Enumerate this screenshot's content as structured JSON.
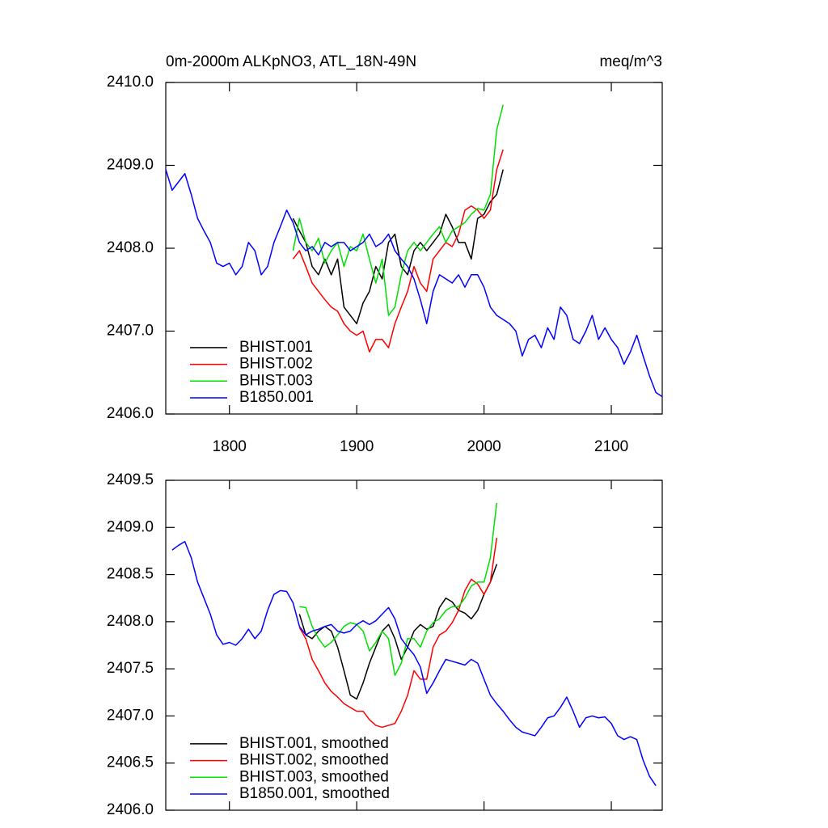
{
  "chart_data": [
    {
      "type": "line",
      "title": "0m-2000m ALKpNO3, ATL_18N-49N",
      "right_title": "meq/m^3",
      "xlim": [
        1750,
        2140
      ],
      "xticks": [
        1800,
        1900,
        2000,
        2100
      ],
      "xtick_labels": true,
      "ylim": [
        2406,
        2410
      ],
      "yticks": [
        {
          "value": 2406,
          "label": "2406.0"
        },
        {
          "value": 2407,
          "label": "2407.0"
        },
        {
          "value": 2408,
          "label": "2408.0"
        },
        {
          "value": 2409,
          "label": "2409.0"
        },
        {
          "value": 2410,
          "label": "2410.0"
        }
      ],
      "legend": "lower left",
      "series": [
        {
          "name": "BHIST.001",
          "color": "#000000",
          "x": [
            1850,
            1855,
            1860,
            1865,
            1870,
            1875,
            1880,
            1885,
            1890,
            1895,
            1900,
            1905,
            1910,
            1915,
            1920,
            1925,
            1930,
            1935,
            1940,
            1945,
            1950,
            1955,
            1960,
            1965,
            1970,
            1975,
            1980,
            1985,
            1990,
            1995,
            2000,
            2005,
            2010,
            2015
          ],
          "values": [
            2408.36,
            2408.21,
            2408.07,
            2407.78,
            2407.68,
            2407.87,
            2407.68,
            2407.87,
            2407.29,
            2407.19,
            2407.09,
            2407.34,
            2407.48,
            2407.78,
            2407.63,
            2408.07,
            2408.17,
            2407.78,
            2407.68,
            2407.97,
            2408.07,
            2407.97,
            2408.07,
            2408.17,
            2408.41,
            2408.26,
            2408.07,
            2408.07,
            2407.87,
            2408.36,
            2408.41,
            2408.56,
            2408.65,
            2408.95
          ]
        },
        {
          "name": "BHIST.002",
          "color": "#ff0000",
          "x": [
            1850,
            1855,
            1860,
            1865,
            1870,
            1875,
            1880,
            1885,
            1890,
            1895,
            1900,
            1905,
            1910,
            1915,
            1920,
            1925,
            1930,
            1935,
            1940,
            1945,
            1950,
            1955,
            1960,
            1965,
            1970,
            1975,
            1980,
            1985,
            1990,
            1995,
            2000,
            2005,
            2010,
            2015
          ],
          "values": [
            2407.87,
            2407.97,
            2407.78,
            2407.58,
            2407.48,
            2407.38,
            2407.29,
            2407.24,
            2407.09,
            2407.0,
            2406.95,
            2407.0,
            2406.75,
            2406.9,
            2406.9,
            2406.8,
            2407.09,
            2407.29,
            2407.48,
            2407.78,
            2407.58,
            2407.48,
            2407.87,
            2407.97,
            2408.07,
            2408.02,
            2408.17,
            2408.46,
            2408.51,
            2408.46,
            2408.36,
            2408.46,
            2408.95,
            2409.19
          ]
        },
        {
          "name": "BHIST.003",
          "color": "#00e000",
          "x": [
            1850,
            1855,
            1860,
            1865,
            1870,
            1875,
            1880,
            1885,
            1890,
            1895,
            1900,
            1905,
            1910,
            1915,
            1920,
            1925,
            1930,
            1935,
            1940,
            1945,
            1950,
            1955,
            1960,
            1965,
            1970,
            1975,
            1980,
            1985,
            1990,
            1995,
            2000,
            2005,
            2010,
            2015
          ],
          "values": [
            2407.97,
            2408.36,
            2408.07,
            2407.97,
            2408.12,
            2407.82,
            2407.97,
            2408.07,
            2407.78,
            2408.02,
            2407.97,
            2408.17,
            2407.87,
            2407.58,
            2407.87,
            2407.19,
            2407.29,
            2407.68,
            2407.97,
            2408.07,
            2407.97,
            2408.07,
            2408.17,
            2408.26,
            2408.07,
            2408.21,
            2408.26,
            2408.31,
            2408.41,
            2408.48,
            2408.46,
            2408.65,
            2409.43,
            2409.73
          ]
        },
        {
          "name": "B1850.001",
          "color": "#0000ff",
          "x": [
            1750,
            1755,
            1760,
            1765,
            1770,
            1775,
            1780,
            1785,
            1790,
            1795,
            1800,
            1805,
            1810,
            1815,
            1820,
            1825,
            1830,
            1835,
            1840,
            1845,
            1850,
            1855,
            1860,
            1865,
            1870,
            1875,
            1880,
            1885,
            1890,
            1895,
            1900,
            1905,
            1910,
            1915,
            1920,
            1925,
            1930,
            1935,
            1940,
            1945,
            1950,
            1955,
            1960,
            1965,
            1970,
            1975,
            1980,
            1985,
            1990,
            1995,
            2000,
            2005,
            2010,
            2015,
            2020,
            2025,
            2030,
            2035,
            2040,
            2045,
            2050,
            2055,
            2060,
            2065,
            2070,
            2075,
            2080,
            2085,
            2090,
            2095,
            2100,
            2105,
            2110,
            2115,
            2120,
            2125,
            2130,
            2135,
            2140
          ],
          "values": [
            2408.95,
            2408.7,
            2408.8,
            2408.9,
            2408.65,
            2408.36,
            2408.21,
            2408.07,
            2407.82,
            2407.78,
            2407.82,
            2407.68,
            2407.78,
            2408.07,
            2407.97,
            2407.68,
            2407.78,
            2408.07,
            2408.26,
            2408.46,
            2408.31,
            2408.07,
            2407.97,
            2408.02,
            2407.92,
            2408.07,
            2408.02,
            2408.07,
            2408.07,
            2407.97,
            2408.02,
            2408.07,
            2408.17,
            2408.02,
            2408.07,
            2408.17,
            2407.97,
            2407.87,
            2407.78,
            2407.63,
            2407.38,
            2407.09,
            2407.48,
            2407.68,
            2407.63,
            2407.58,
            2407.68,
            2407.53,
            2407.68,
            2407.68,
            2407.53,
            2407.29,
            2407.19,
            2407.14,
            2407.09,
            2407.0,
            2406.7,
            2406.9,
            2406.95,
            2406.8,
            2407.04,
            2406.9,
            2407.29,
            2407.19,
            2406.9,
            2406.85,
            2407.0,
            2407.19,
            2406.9,
            2407.04,
            2406.9,
            2406.8,
            2406.6,
            2406.75,
            2406.95,
            2406.7,
            2406.46,
            2406.26,
            2406.21
          ]
        }
      ]
    },
    {
      "type": "line",
      "xlim": [
        1750,
        2140
      ],
      "xticks": [
        1800,
        1900,
        2000,
        2100
      ],
      "xtick_labels": false,
      "ylim": [
        2406,
        2409.5
      ],
      "yticks": [
        {
          "value": 2406,
          "label": "2406.0"
        },
        2406.5,
        {
          "value": 2407,
          "label": "2407.0"
        },
        2407.5,
        {
          "value": 2408,
          "label": "2408.0"
        },
        2408.5,
        {
          "value": 2409,
          "label": "2409.0"
        },
        2409.5
      ],
      "legend": "lower left",
      "series": [
        {
          "name": "BHIST.001, smoothed",
          "color": "#000000",
          "x": [
            1855,
            1860,
            1865,
            1870,
            1875,
            1880,
            1885,
            1890,
            1895,
            1900,
            1905,
            1910,
            1915,
            1920,
            1925,
            1930,
            1935,
            1940,
            1945,
            1950,
            1955,
            1960,
            1965,
            1970,
            1975,
            1980,
            1985,
            1990,
            1995,
            2000,
            2005,
            2010
          ],
          "values": [
            2408.08,
            2407.86,
            2407.82,
            2407.9,
            2407.95,
            2407.9,
            2407.73,
            2407.48,
            2407.22,
            2407.18,
            2407.35,
            2407.56,
            2407.73,
            2407.9,
            2407.97,
            2407.82,
            2407.6,
            2407.73,
            2407.9,
            2407.97,
            2407.92,
            2407.95,
            2408.15,
            2408.25,
            2408.21,
            2408.12,
            2408.09,
            2408.03,
            2408.12,
            2408.29,
            2408.42,
            2408.61
          ]
        },
        {
          "name": "BHIST.002, smoothed",
          "color": "#ff0000",
          "x": [
            1855,
            1860,
            1865,
            1870,
            1875,
            1880,
            1885,
            1890,
            1895,
            1900,
            1905,
            1910,
            1915,
            1920,
            1925,
            1930,
            1935,
            1940,
            1945,
            1950,
            1955,
            1960,
            1965,
            1970,
            1975,
            1980,
            1985,
            1990,
            1995,
            2000,
            2005,
            2010
          ],
          "values": [
            2407.94,
            2407.82,
            2407.6,
            2407.48,
            2407.35,
            2407.26,
            2407.2,
            2407.13,
            2407.09,
            2407.05,
            2407.05,
            2406.96,
            2406.9,
            2406.88,
            2406.9,
            2406.92,
            2407.05,
            2407.22,
            2407.48,
            2407.39,
            2407.39,
            2407.73,
            2407.86,
            2407.9,
            2407.99,
            2408.12,
            2408.33,
            2408.45,
            2408.4,
            2408.29,
            2408.42,
            2408.89
          ]
        },
        {
          "name": "BHIST.003, smoothed",
          "color": "#00e000",
          "x": [
            1855,
            1860,
            1865,
            1870,
            1875,
            1880,
            1885,
            1890,
            1895,
            1900,
            1905,
            1910,
            1915,
            1920,
            1925,
            1930,
            1935,
            1940,
            1945,
            1950,
            1955,
            1960,
            1965,
            1970,
            1975,
            1980,
            1985,
            1990,
            1995,
            2000,
            2005,
            2010
          ],
          "values": [
            2408.16,
            2408.15,
            2407.95,
            2407.82,
            2407.73,
            2407.78,
            2407.86,
            2407.95,
            2407.99,
            2407.97,
            2407.9,
            2407.69,
            2407.78,
            2407.9,
            2407.82,
            2407.43,
            2407.56,
            2407.82,
            2407.82,
            2407.73,
            2407.9,
            2407.99,
            2408.03,
            2408.12,
            2408.16,
            2408.16,
            2408.25,
            2408.38,
            2408.42,
            2408.42,
            2408.68,
            2409.26
          ]
        },
        {
          "name": "B1850.001, smoothed",
          "color": "#0000ff",
          "x": [
            1755,
            1760,
            1765,
            1770,
            1775,
            1780,
            1785,
            1790,
            1795,
            1800,
            1805,
            1810,
            1815,
            1820,
            1825,
            1830,
            1835,
            1840,
            1845,
            1850,
            1855,
            1860,
            1865,
            1870,
            1875,
            1880,
            1885,
            1890,
            1895,
            1900,
            1905,
            1910,
            1915,
            1920,
            1925,
            1930,
            1935,
            1940,
            1945,
            1950,
            1955,
            1960,
            1965,
            1970,
            1975,
            1980,
            1985,
            1990,
            1995,
            2000,
            2005,
            2010,
            2015,
            2020,
            2025,
            2030,
            2035,
            2040,
            2045,
            2050,
            2055,
            2060,
            2065,
            2070,
            2075,
            2080,
            2085,
            2090,
            2095,
            2100,
            2105,
            2110,
            2115,
            2120,
            2125,
            2130,
            2135
          ],
          "values": [
            2408.76,
            2408.81,
            2408.85,
            2408.68,
            2408.42,
            2408.25,
            2408.08,
            2407.86,
            2407.76,
            2407.78,
            2407.75,
            2407.82,
            2407.92,
            2407.82,
            2407.9,
            2408.12,
            2408.29,
            2408.33,
            2408.32,
            2408.2,
            2407.95,
            2407.86,
            2407.9,
            2407.92,
            2407.95,
            2407.97,
            2407.9,
            2407.88,
            2407.9,
            2407.97,
            2408.01,
            2407.97,
            2408.01,
            2408.08,
            2408.15,
            2408.03,
            2407.82,
            2407.73,
            2407.65,
            2407.52,
            2407.24,
            2407.35,
            2407.48,
            2407.6,
            2407.58,
            2407.56,
            2407.54,
            2407.6,
            2407.56,
            2407.39,
            2407.22,
            2407.13,
            2407.05,
            2406.96,
            2406.88,
            2406.83,
            2406.81,
            2406.79,
            2406.88,
            2406.98,
            2407.0,
            2407.09,
            2407.2,
            2407.05,
            2406.88,
            2406.98,
            2407.0,
            2406.98,
            2406.99,
            2406.92,
            2406.79,
            2406.75,
            2406.78,
            2406.75,
            2406.53,
            2406.36,
            2406.26
          ]
        }
      ]
    }
  ]
}
